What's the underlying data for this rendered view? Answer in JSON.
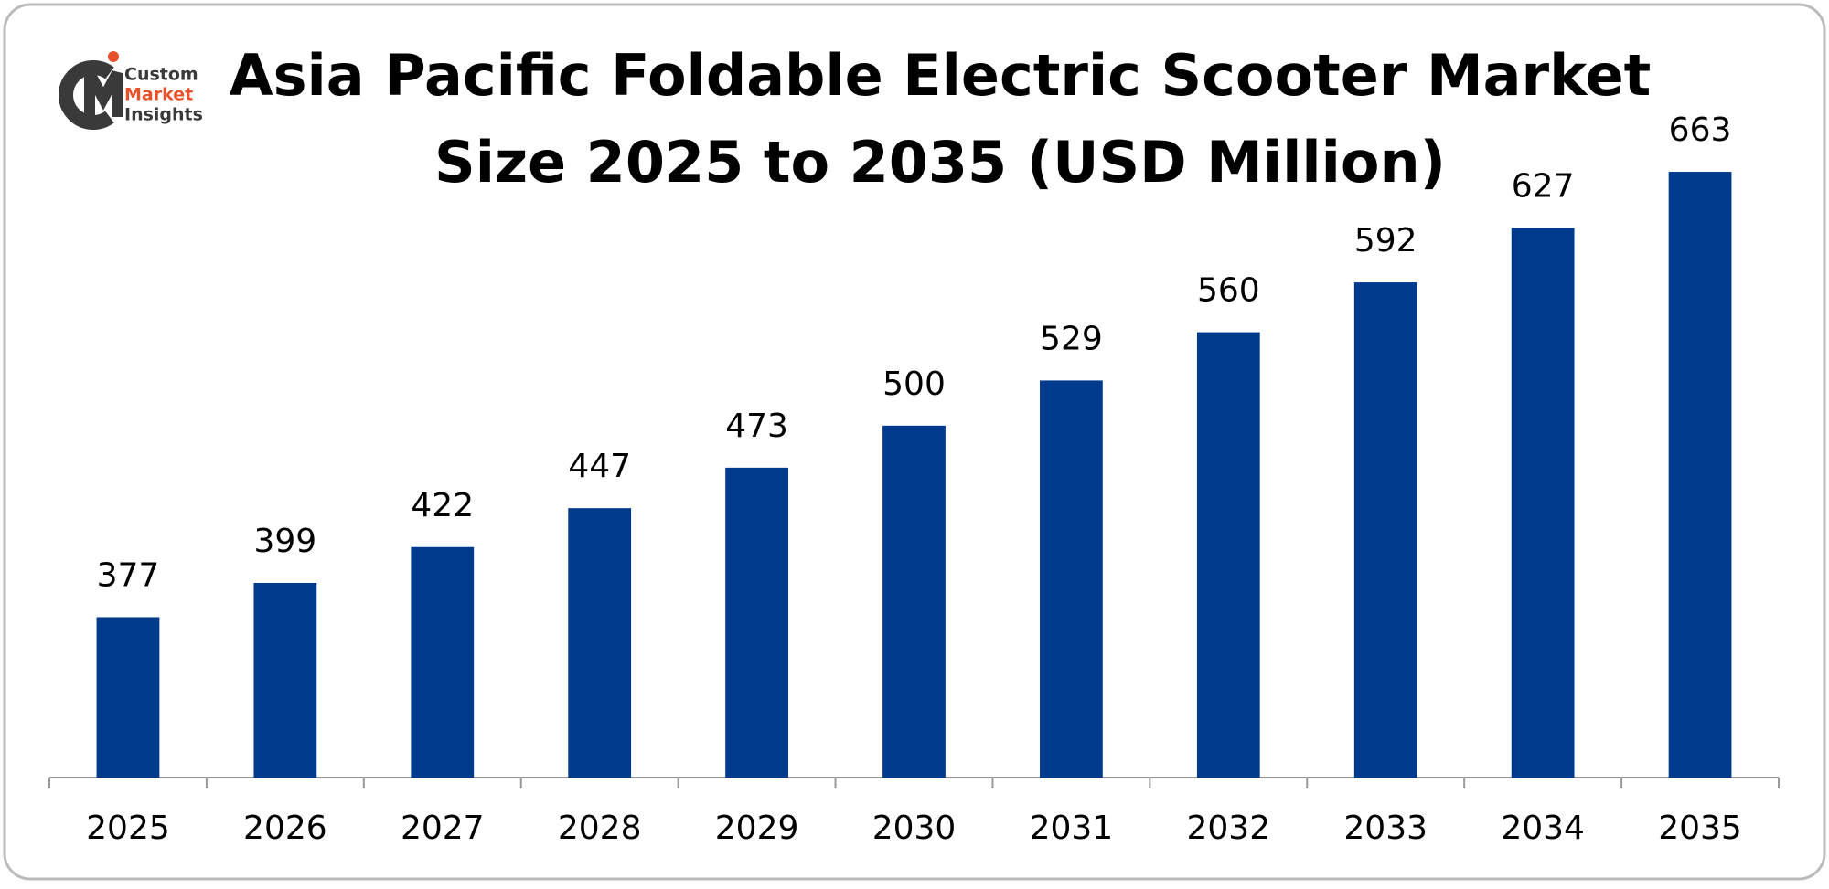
{
  "logo_text": [
    "Custom",
    "Market",
    "Insights"
  ],
  "chart_data": {
    "type": "bar",
    "title": [
      "Asia Pacific Foldable Electric Scooter Market",
      "Size 2025 to 2035 (USD Million)"
    ],
    "categories": [
      "2025",
      "2026",
      "2027",
      "2028",
      "2029",
      "2030",
      "2031",
      "2032",
      "2033",
      "2034",
      "2035"
    ],
    "values": [
      377,
      399,
      422,
      447,
      473,
      500,
      529,
      560,
      592,
      627,
      663
    ],
    "color": "#003a8c",
    "ylim": [
      274,
      700
    ]
  }
}
